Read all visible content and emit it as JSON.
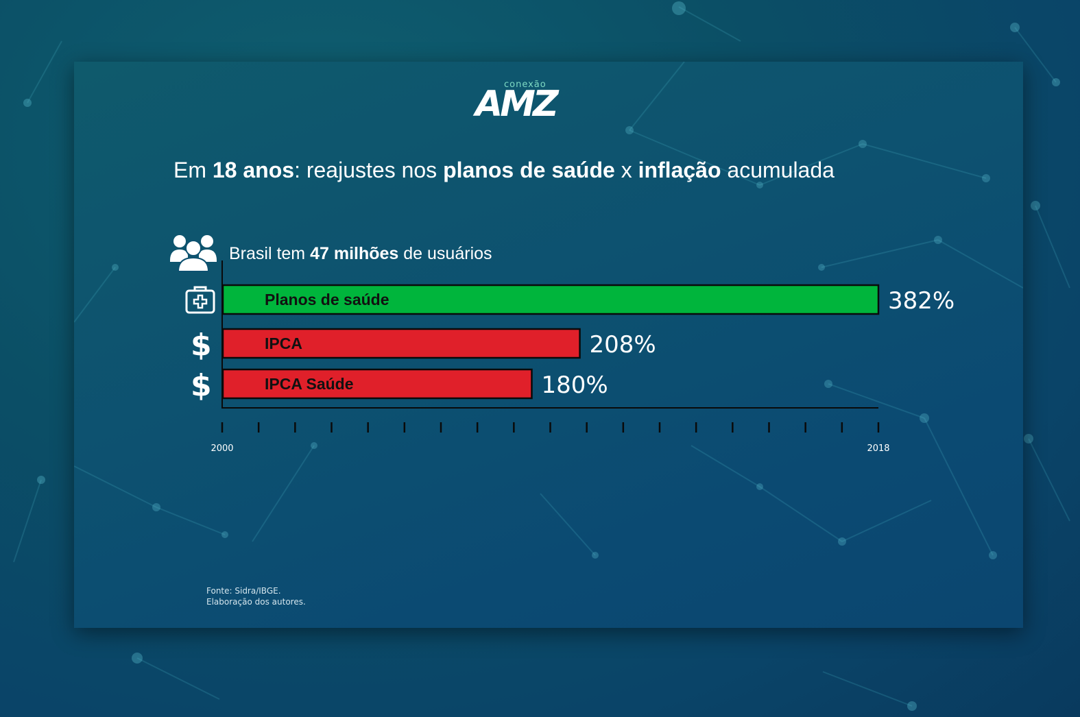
{
  "brand": {
    "logo_small": "conexão",
    "logo_big": "AMZ"
  },
  "headline": {
    "p1": "Em ",
    "b1": "18 anos",
    "p2": ": reajustes nos ",
    "b2": "planos de saúde",
    "p3": " x ",
    "b3": "inflação",
    "p4": " acumulada"
  },
  "users": {
    "p1": "Brasil tem ",
    "b1": "47 milhões",
    "p2": " de usuários",
    "icon": "users-group-icon"
  },
  "chart_data": {
    "type": "bar",
    "orientation": "horizontal",
    "title": "Em 18 anos: reajustes nos planos de saúde x inflação acumulada",
    "categories": [
      "Planos de saúde",
      "IPCA",
      "IPCA Saúde"
    ],
    "values": [
      382,
      208,
      180
    ],
    "value_labels": [
      "382%",
      "208%",
      "180%"
    ],
    "colors": [
      "#00b53c",
      "#e0202a",
      "#e0202a"
    ],
    "icons": [
      "medical-kit-icon",
      "dollar-icon",
      "dollar-icon"
    ],
    "xlim": [
      0,
      382
    ],
    "axis": {
      "start_label": "2000",
      "end_label": "2018",
      "start_year": 2000,
      "end_year": 2018
    },
    "grid": false
  },
  "source": {
    "line1": "Fonte: Sidra/IBGE.",
    "line2": "Elaboração dos autores."
  }
}
